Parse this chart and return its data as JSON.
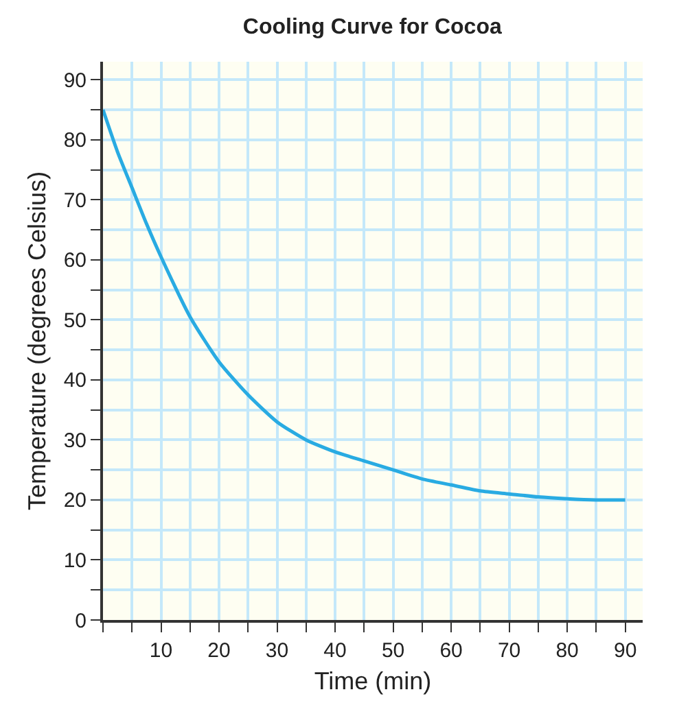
{
  "chart_data": {
    "type": "line",
    "title": "Cooling Curve for Cocoa",
    "xlabel": "Time (min)",
    "ylabel": "Temperature (degrees Celsius)",
    "x": [
      0,
      2.5,
      5,
      7.5,
      10,
      15,
      20,
      25,
      30,
      35,
      40,
      45,
      50,
      55,
      60,
      65,
      70,
      75,
      80,
      85,
      90
    ],
    "series": [
      {
        "color": "#29abe2",
        "values": [
          85,
          78,
          72,
          66,
          60.5,
          50.5,
          43,
          37.5,
          33,
          30,
          28,
          26.5,
          25,
          23.5,
          22.5,
          21.5,
          21,
          20.5,
          20.2,
          20,
          20
        ]
      }
    ],
    "xlim": [
      0,
      93
    ],
    "ylim": [
      0,
      93
    ],
    "xticks": [
      {
        "value": 0,
        "label": null
      },
      {
        "value": 5,
        "label": null
      },
      10,
      {
        "value": 15,
        "label": null
      },
      20,
      {
        "value": 25,
        "label": null
      },
      30,
      {
        "value": 35,
        "label": null
      },
      40,
      {
        "value": 45,
        "label": null
      },
      50,
      {
        "value": 55,
        "label": null
      },
      60,
      {
        "value": 65,
        "label": null
      },
      70,
      {
        "value": 75,
        "label": null
      },
      80,
      {
        "value": 85,
        "label": null
      },
      90
    ],
    "yticks": [
      0,
      {
        "value": 5,
        "label": null
      },
      10,
      {
        "value": 15,
        "label": null
      },
      20,
      {
        "value": 25,
        "label": null
      },
      30,
      {
        "value": 35,
        "label": null
      },
      40,
      {
        "value": 45,
        "label": null
      },
      50,
      {
        "value": 55,
        "label": null
      },
      60,
      {
        "value": 65,
        "label": null
      },
      70,
      {
        "value": 75,
        "label": null
      },
      80,
      {
        "value": 85,
        "label": null
      },
      90
    ],
    "grid": true,
    "marker": "none",
    "line_style": "solid"
  }
}
